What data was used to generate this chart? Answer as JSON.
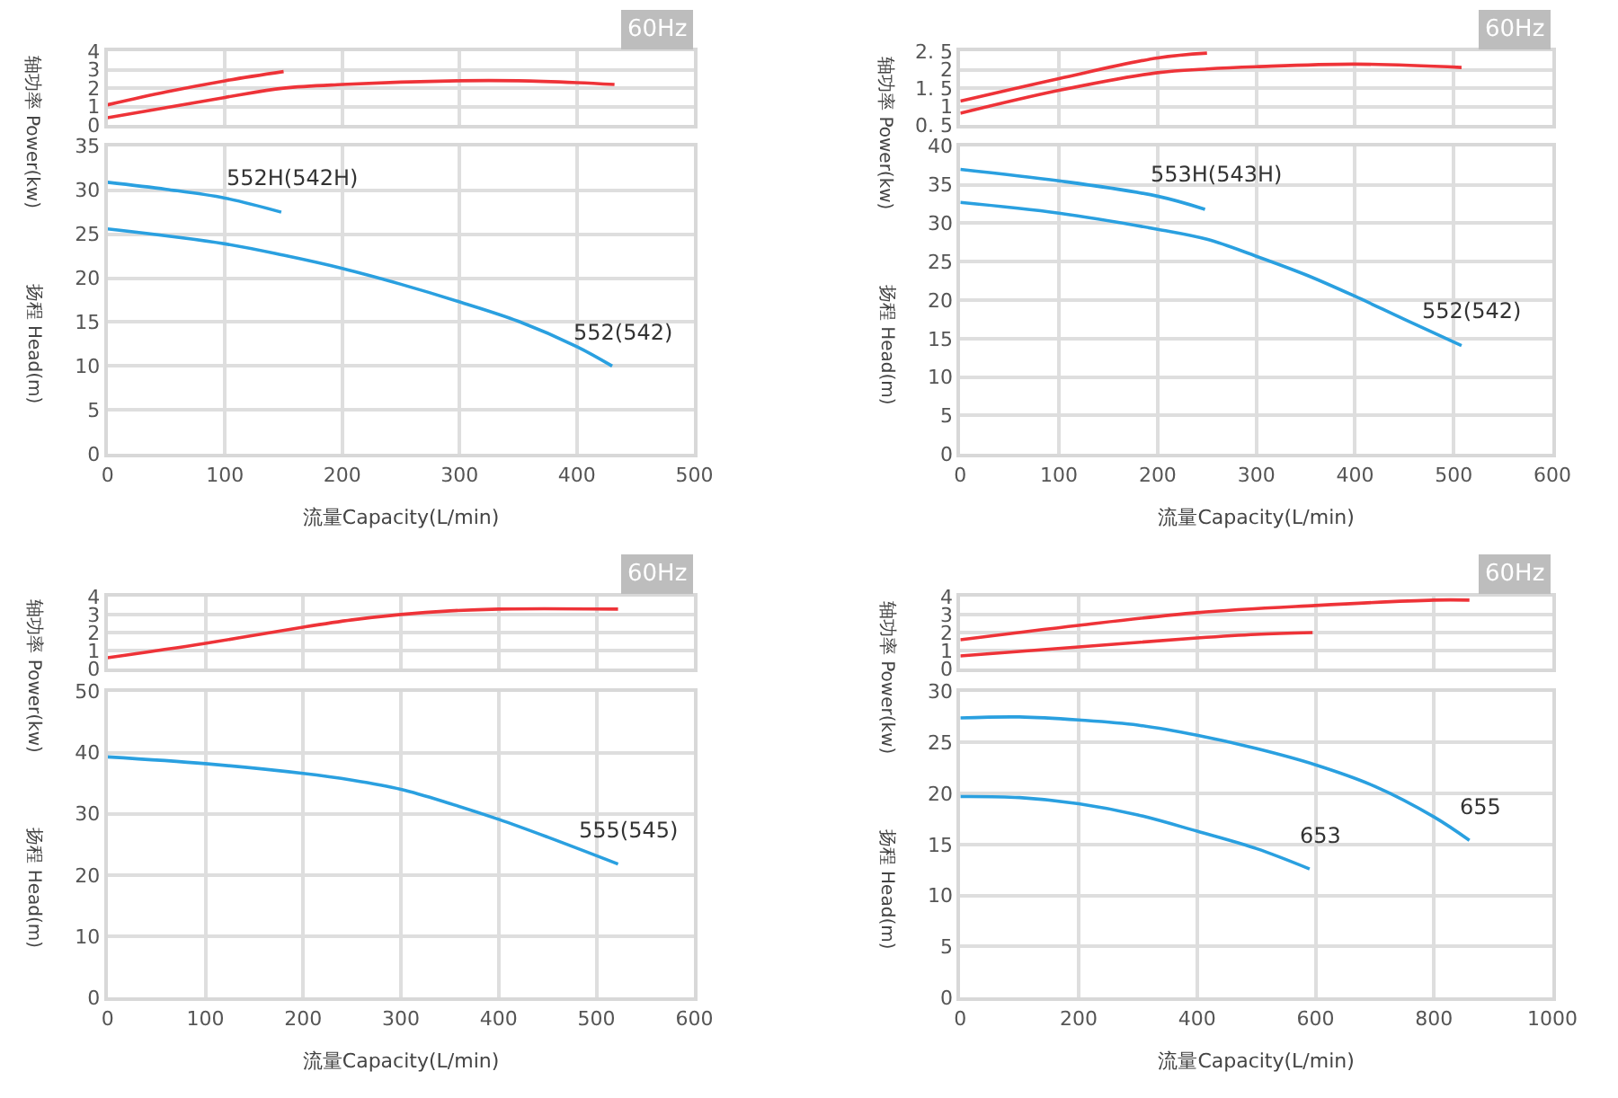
{
  "chart_data": [
    {
      "type": "line",
      "ylabel": "轴功率 Power(kw)",
      "annotations": [
        "60Hz"
      ],
      "tick_labels": "y",
      "grid": true,
      "xlim": [
        0,
        500
      ],
      "xticks": [
        0,
        100,
        200,
        300,
        400,
        500
      ],
      "ylim": [
        0,
        4
      ],
      "yticks": [
        0,
        1,
        2,
        3,
        4
      ],
      "series": [
        {
          "color": "#ee3338",
          "x": [
            0,
            50,
            100,
            150
          ],
          "values": [
            1.1,
            1.8,
            2.4,
            2.9
          ]
        },
        {
          "color": "#ee3338",
          "x": [
            0,
            100,
            150,
            200,
            300,
            350,
            400,
            432
          ],
          "values": [
            0.4,
            1.5,
            2.0,
            2.2,
            2.4,
            2.4,
            2.3,
            2.2
          ]
        }
      ]
    },
    {
      "type": "line",
      "xlabel": "流量Capacity(L/min)",
      "ylabel": "扬程 Head(m)",
      "grid": true,
      "xlim": [
        0,
        500
      ],
      "xticks": [
        0,
        100,
        200,
        300,
        400,
        500
      ],
      "ylim": [
        0,
        35
      ],
      "yticks": [
        0,
        5,
        10,
        15,
        20,
        25,
        30,
        35
      ],
      "series": [
        {
          "name": "552H(542H)",
          "color": "#2aa0e0",
          "x": [
            0,
            50,
            100,
            148
          ],
          "values": [
            30.9,
            30.1,
            29.1,
            27.5
          ]
        },
        {
          "name": "552(542)",
          "color": "#2aa0e0",
          "x": [
            0,
            100,
            150,
            200,
            250,
            300,
            350,
            400,
            430
          ],
          "values": [
            25.6,
            23.9,
            22.6,
            21.1,
            19.3,
            17.3,
            15.1,
            12.2,
            10.0
          ]
        }
      ]
    },
    {
      "type": "line",
      "ylabel": "轴功率 Power(kw)",
      "annotations": [
        "60Hz"
      ],
      "tick_labels": "y",
      "grid": true,
      "xlim": [
        0,
        600
      ],
      "xticks": [
        0,
        100,
        200,
        300,
        400,
        500,
        600
      ],
      "ylim": [
        0.5,
        2.5
      ],
      "yticks": [
        {
          "value": 0.5,
          "label": "0. 5"
        },
        1,
        {
          "value": 1.5,
          "label": "1. 5"
        },
        2,
        {
          "value": 2.5,
          "label": "2. 5"
        }
      ],
      "series": [
        {
          "color": "#ee3338",
          "x": [
            0,
            100,
            200,
            250
          ],
          "values": [
            1.15,
            1.76,
            2.32,
            2.45
          ]
        },
        {
          "color": "#ee3338",
          "x": [
            0,
            100,
            200,
            250,
            300,
            400,
            508
          ],
          "values": [
            0.82,
            1.44,
            1.92,
            2.02,
            2.08,
            2.15,
            2.06
          ]
        }
      ]
    },
    {
      "type": "line",
      "xlabel": "流量Capacity(L/min)",
      "ylabel": "扬程 Head(m)",
      "grid": true,
      "xlim": [
        0,
        600
      ],
      "xticks": [
        0,
        100,
        200,
        300,
        400,
        500,
        600
      ],
      "ylim": [
        0,
        40
      ],
      "yticks": [
        0,
        5,
        10,
        15,
        20,
        25,
        30,
        35,
        40
      ],
      "series": [
        {
          "name": "553H(543H)",
          "color": "#2aa0e0",
          "x": [
            0,
            100,
            200,
            248
          ],
          "values": [
            37.0,
            35.5,
            33.5,
            31.8
          ]
        },
        {
          "name": "552(542)",
          "color": "#2aa0e0",
          "x": [
            0,
            100,
            200,
            250,
            300,
            350,
            400,
            450,
            508
          ],
          "values": [
            32.7,
            31.3,
            29.2,
            27.9,
            25.7,
            23.3,
            20.5,
            17.5,
            14.1
          ]
        }
      ]
    },
    {
      "type": "line",
      "ylabel": "轴功率 Power(kw)",
      "annotations": [
        "60Hz"
      ],
      "tick_labels": "y",
      "grid": true,
      "xlim": [
        0,
        600
      ],
      "xticks": [
        0,
        100,
        200,
        300,
        400,
        500,
        600
      ],
      "ylim": [
        0,
        4
      ],
      "yticks": [
        0,
        1,
        2,
        3,
        4
      ],
      "series": [
        {
          "color": "#ee3338",
          "x": [
            0,
            100,
            200,
            250,
            300,
            350,
            400,
            522
          ],
          "values": [
            0.6,
            1.4,
            2.3,
            2.7,
            3.0,
            3.2,
            3.3,
            3.3
          ]
        }
      ]
    },
    {
      "type": "line",
      "xlabel": "流量Capacity(L/min)",
      "ylabel": "扬程 Head(m)",
      "grid": true,
      "xlim": [
        0,
        600
      ],
      "xticks": [
        0,
        100,
        200,
        300,
        400,
        500,
        600
      ],
      "ylim": [
        0,
        50
      ],
      "yticks": [
        0,
        10,
        20,
        30,
        40,
        50
      ],
      "series": [
        {
          "name": "555(545)",
          "color": "#2aa0e0",
          "x": [
            0,
            100,
            200,
            250,
            300,
            350,
            400,
            450,
            522
          ],
          "values": [
            39.3,
            38.2,
            36.6,
            35.5,
            34.0,
            31.7,
            29.1,
            26.2,
            21.8
          ]
        }
      ]
    },
    {
      "type": "line",
      "ylabel": "轴功率 Power(kw)",
      "annotations": [
        "60Hz"
      ],
      "tick_labels": "y",
      "grid": true,
      "xlim": [
        0,
        1000
      ],
      "xticks": [
        0,
        200,
        400,
        600,
        800,
        1000
      ],
      "ylim": [
        0,
        4
      ],
      "yticks": [
        0,
        1,
        2,
        3,
        4
      ],
      "series": [
        {
          "color": "#ee3338",
          "x": [
            0,
            200,
            400,
            600,
            800,
            860
          ],
          "values": [
            1.6,
            2.4,
            3.1,
            3.5,
            3.8,
            3.8
          ]
        },
        {
          "color": "#ee3338",
          "x": [
            0,
            200,
            400,
            500,
            595
          ],
          "values": [
            0.7,
            1.2,
            1.7,
            1.9,
            2.0
          ]
        }
      ]
    },
    {
      "type": "line",
      "xlabel": "流量Capacity(L/min)",
      "ylabel": "扬程 Head(m)",
      "grid": true,
      "xlim": [
        0,
        1000
      ],
      "xticks": [
        0,
        200,
        400,
        600,
        800,
        1000
      ],
      "ylim": [
        0,
        30
      ],
      "yticks": [
        0,
        5,
        10,
        15,
        20,
        25,
        30
      ],
      "series": [
        {
          "name": "655",
          "color": "#2aa0e0",
          "x": [
            0,
            100,
            200,
            300,
            400,
            500,
            600,
            700,
            800,
            860
          ],
          "values": [
            27.4,
            27.5,
            27.2,
            26.7,
            25.7,
            24.4,
            22.8,
            20.7,
            17.7,
            15.4
          ]
        },
        {
          "name": "653",
          "color": "#2aa0e0",
          "x": [
            0,
            100,
            200,
            300,
            400,
            500,
            590
          ],
          "values": [
            19.7,
            19.6,
            19.0,
            17.9,
            16.3,
            14.6,
            12.6
          ]
        }
      ]
    }
  ]
}
